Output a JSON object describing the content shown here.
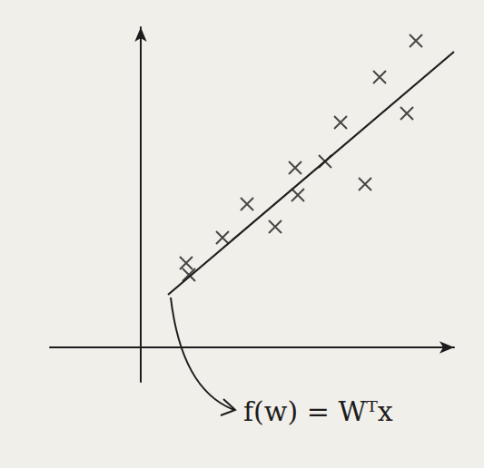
{
  "chart_data": {
    "type": "scatter",
    "annotation": "f(w) = Wᵀx",
    "xlim": [
      -10,
      34.5
    ],
    "ylim": [
      -3.8,
      35.3
    ],
    "xticks": [],
    "yticks": [],
    "tick_labels": false,
    "grid": false,
    "series": [
      {
        "type": "scatter",
        "marker": "x",
        "color": "#1c1c1c",
        "x": [
          5.0,
          5.3,
          9.0,
          11.7,
          14.8,
          17.0,
          17.3,
          20.3,
          22.0,
          24.7,
          26.3,
          29.3,
          30.3
        ],
        "values": [
          9.3,
          8.0,
          12.1,
          15.8,
          13.3,
          19.8,
          16.8,
          20.5,
          24.8,
          18.0,
          29.8,
          25.8,
          33.8
        ]
      },
      {
        "type": "line",
        "line_style": "solid",
        "color": "#1c1c1c",
        "x": [
          3.0,
          34.5
        ],
        "values": [
          5.8,
          32.6
        ]
      }
    ]
  }
}
